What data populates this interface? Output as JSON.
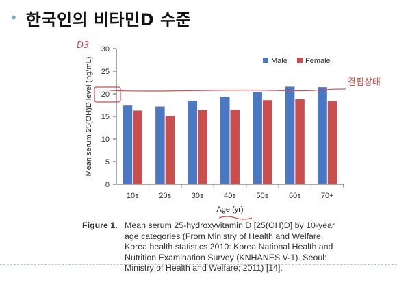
{
  "slide": {
    "title": "한국인의 비타민D 수준"
  },
  "chart_data": {
    "type": "bar",
    "xlabel": "Age (yr)",
    "ylabel": "Mean serum 25(OH)D level (ng/mL)",
    "ylim": [
      0,
      30
    ],
    "yticks": [
      0,
      5,
      10,
      15,
      20,
      25,
      30
    ],
    "categories": [
      "10s",
      "20s",
      "30s",
      "40s",
      "50s",
      "60s",
      "70+"
    ],
    "series": [
      {
        "name": "Male",
        "color": "#4a78c2",
        "values": [
          17.4,
          17.2,
          18.4,
          19.4,
          20.4,
          21.6,
          21.5
        ]
      },
      {
        "name": "Female",
        "color": "#c94f4f",
        "values": [
          16.3,
          15.1,
          16.4,
          16.5,
          18.6,
          18.8,
          18.4
        ]
      }
    ],
    "legend_position": "top-right",
    "reference_line": 20.6,
    "annotations": [
      "D3",
      "결핍상태"
    ]
  },
  "caption": {
    "label": "Figure 1.",
    "text": "Mean serum 25-hydroxyvitamin D [25(OH)D] by 10-year age categories (From Ministry of Health and Welfare. Korea health statistics 2010: Korea National Health and Nutrition Examination Survey (KNHANES V-1). Seoul: Ministry of Health and Welfare; 2011) [14]."
  }
}
